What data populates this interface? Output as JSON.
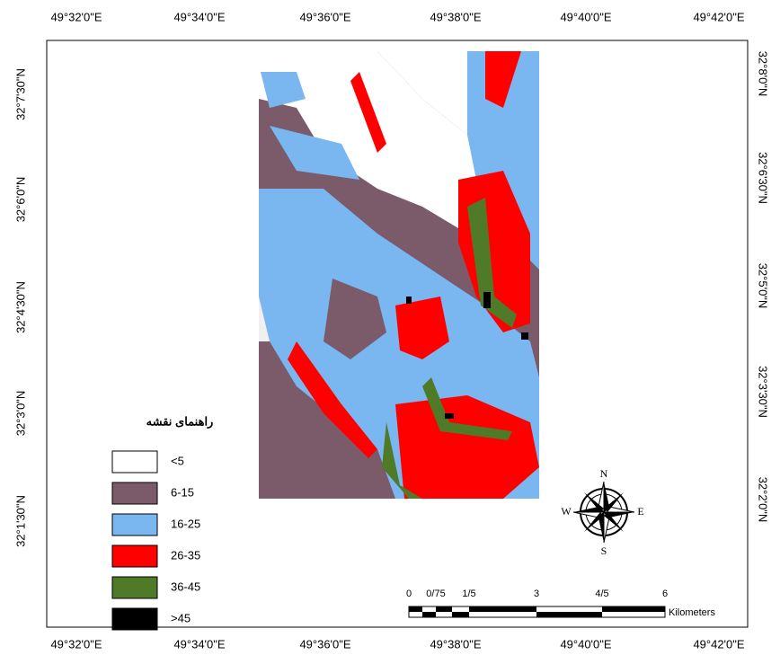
{
  "map": {
    "top_labels": [
      "49°32'0\"E",
      "49°34'0\"E",
      "49°36'0\"E",
      "49°38'0\"E",
      "49°40'0\"E",
      "49°42'0\"E"
    ],
    "bottom_labels": [
      "49°32'0\"E",
      "49°34'0\"E",
      "49°36'0\"E",
      "49°38'0\"E",
      "49°40'0\"E",
      "49°42'0\"E"
    ],
    "left_labels": [
      "32°7'30\"N",
      "32°6'0\"N",
      "32°4'30\"N",
      "32°3'0\"N",
      "32°1'30\"N"
    ],
    "right_labels": [
      "32°8'0\"N",
      "32°6'30\"N",
      "32°5'0\"N",
      "32°3'30\"N",
      "32°2'0\"N"
    ],
    "legend": {
      "title": "راهنمای نقشه",
      "items": [
        {
          "label": "<5",
          "color": "#ffffff"
        },
        {
          "label": "6-15",
          "color": "#7b5a6a"
        },
        {
          "label": "16-25",
          "color": "#7ab6f0"
        },
        {
          "label": "26-35",
          "color": "#ff0000"
        },
        {
          "label": "36-45",
          "color": "#4f7a28"
        },
        {
          "label": ">45",
          "color": "#000000"
        }
      ]
    },
    "compass": {
      "n": "N",
      "s": "S",
      "e": "E",
      "w": "W"
    },
    "scale": {
      "ticks": [
        "0",
        "0/75",
        "1/5",
        "3",
        "4/5",
        "6"
      ],
      "unit": "Kilometers"
    }
  }
}
